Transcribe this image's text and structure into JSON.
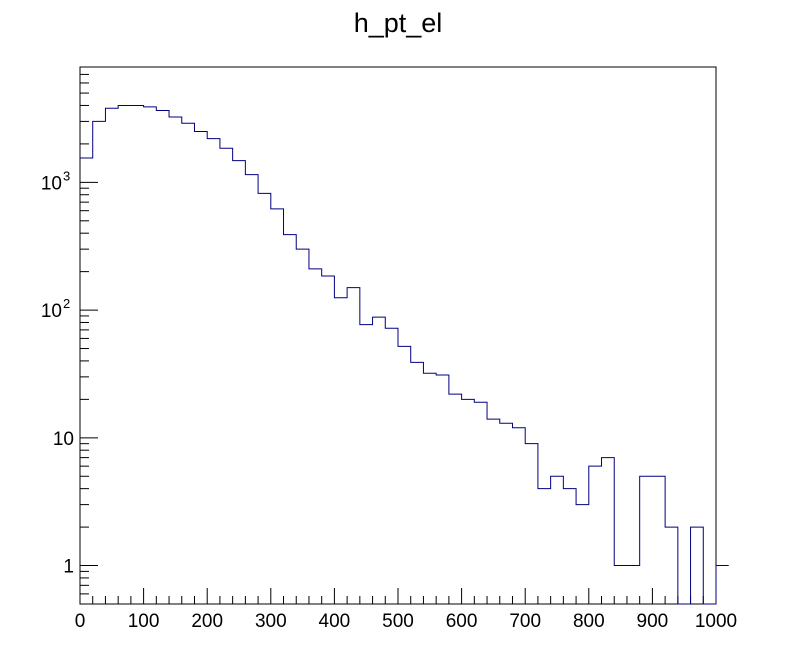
{
  "chart_data": {
    "type": "histogram",
    "title": "h_pt_el",
    "xlabel": "",
    "ylabel": "",
    "x_scale": "linear",
    "y_scale": "log",
    "xlim": [
      0,
      1000
    ],
    "ylim": [
      0.5,
      8000
    ],
    "grid": false,
    "legend": "none",
    "line_color": "#000080",
    "bin_width": 20,
    "bin_edges_start": 0,
    "values": [
      1550,
      3000,
      3800,
      4000,
      4000,
      3900,
      3650,
      3250,
      2900,
      2500,
      2200,
      1850,
      1480,
      1150,
      820,
      620,
      390,
      300,
      210,
      185,
      125,
      150,
      77,
      88,
      72,
      52,
      39,
      32,
      31,
      22,
      20,
      19,
      14,
      13,
      12,
      9,
      4,
      5,
      4,
      3,
      6,
      7,
      1,
      1,
      5,
      5,
      2,
      0,
      2,
      0,
      1
    ],
    "x_ticks": [
      "0",
      "100",
      "200",
      "300",
      "400",
      "500",
      "600",
      "700",
      "800",
      "900",
      "1000"
    ],
    "x_tick_values": [
      0,
      100,
      200,
      300,
      400,
      500,
      600,
      700,
      800,
      900,
      1000
    ],
    "y_ticks": [
      {
        "value": 1,
        "base": "1",
        "exp": ""
      },
      {
        "value": 10,
        "base": "10",
        "exp": ""
      },
      {
        "value": 100,
        "base": "10",
        "exp": "2"
      },
      {
        "value": 1000,
        "base": "10",
        "exp": "3"
      }
    ]
  }
}
